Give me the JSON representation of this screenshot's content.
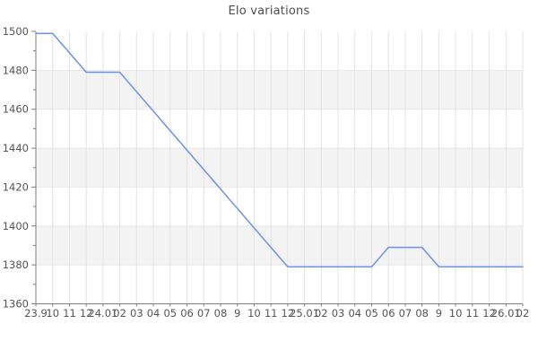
{
  "chart_data": {
    "type": "line",
    "title": "Elo variations",
    "categories": [
      "23.9",
      "10",
      "11",
      "12",
      "24.01",
      "02",
      "03",
      "04",
      "05",
      "06",
      "07",
      "08",
      "9",
      "10",
      "11",
      "12",
      "25.01",
      "02",
      "03",
      "04",
      "05",
      "06",
      "07",
      "08",
      "9",
      "10",
      "11",
      "12",
      "26.01",
      "02"
    ],
    "series": [
      {
        "name": "Elo",
        "values": [
          1499,
          1499,
          1489,
          1479,
          1479,
          1479,
          1469,
          1459,
          1449,
          1439,
          1429,
          1419,
          1409,
          1399,
          1389,
          1379,
          1379,
          1379,
          1379,
          1379,
          1379,
          1389,
          1389,
          1389,
          1379,
          1379,
          1379,
          1379,
          1379,
          1379
        ]
      }
    ],
    "xlabel": "",
    "ylabel": "",
    "ylim": [
      1360,
      1500
    ],
    "ytick_step": 20,
    "ytick_labels": [
      "1500",
      "1480",
      "1460",
      "1440",
      "1420",
      "1400",
      "1380",
      "1360"
    ],
    "grid": true,
    "legend": false,
    "colors": {
      "line": "#6a93e3",
      "band": "#f3f3f3",
      "grid": "#e3e3e3",
      "hgrid": "#e8e8e8",
      "axis": "#7d7d7d",
      "tick_label": "#555555",
      "title": "#4d4d4d",
      "background": "#ffffff"
    }
  }
}
